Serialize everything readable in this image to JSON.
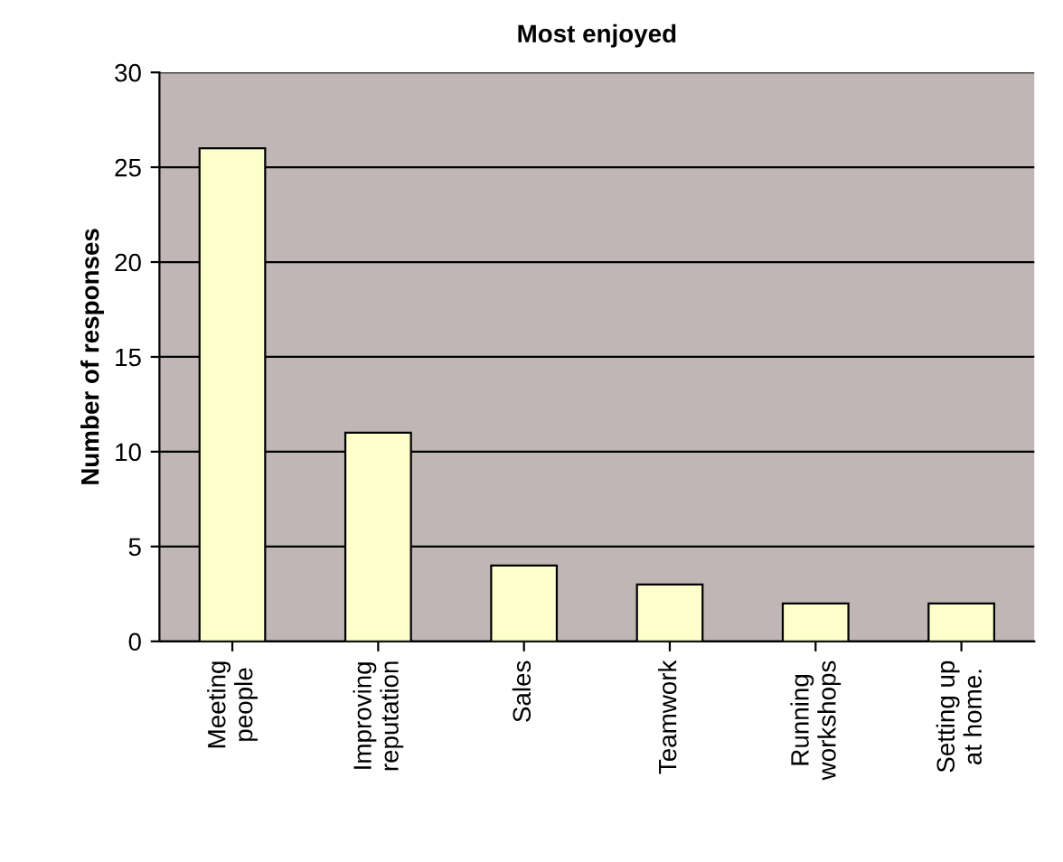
{
  "chart_data": {
    "type": "bar",
    "title": "Most enjoyed",
    "ylabel": "Number of responses",
    "categories": [
      "Meeting\npeople",
      "Improving\nreputation",
      "Sales",
      "Teamwork",
      "Running\nworkshops",
      "Setting up\nat home."
    ],
    "values": [
      26,
      11,
      4,
      3,
      2,
      2
    ],
    "color": "#ffffcc",
    "ylim": [
      0,
      30
    ],
    "yticks": [
      0,
      5,
      10,
      15,
      20,
      25,
      30
    ],
    "grid": "y",
    "legend": false
  }
}
